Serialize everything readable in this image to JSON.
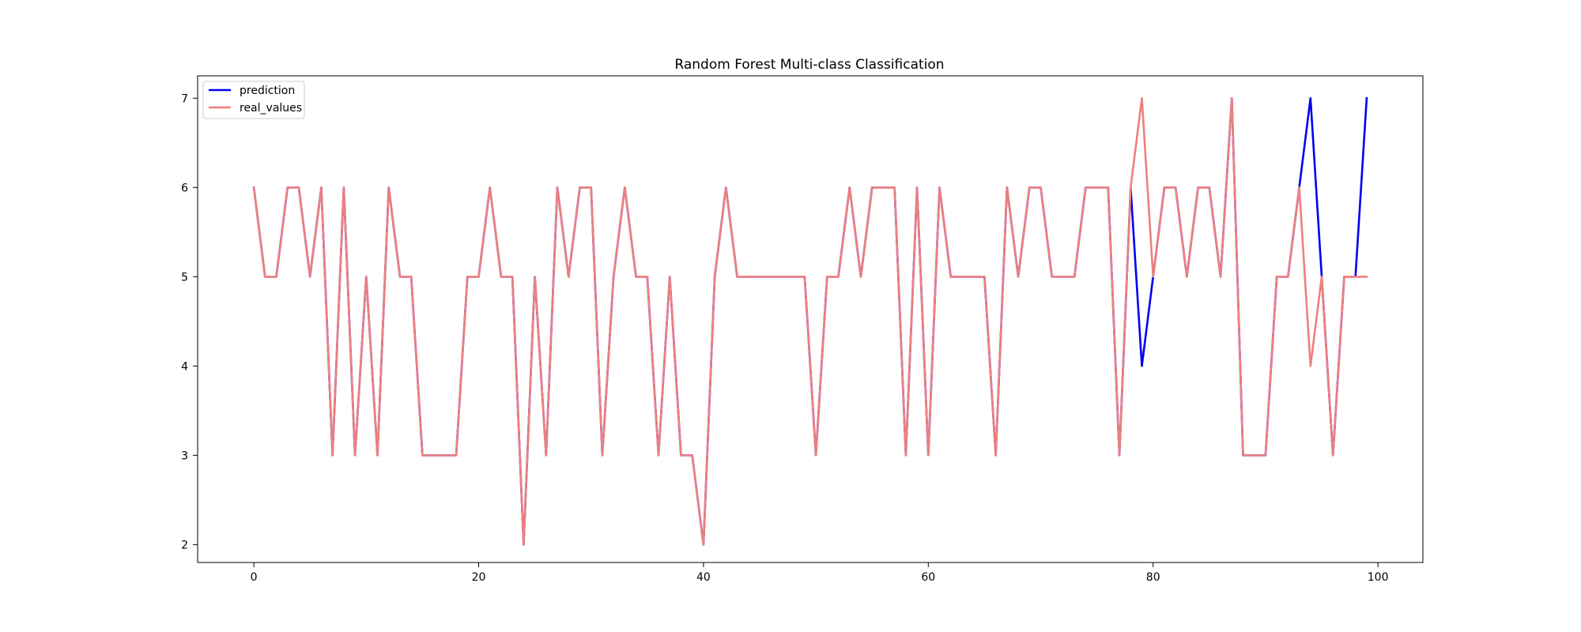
{
  "chart_data": {
    "type": "line",
    "title": "Random Forest Multi-class Classification",
    "xlabel": "",
    "ylabel": "",
    "xlim": [
      -5,
      104
    ],
    "ylim": [
      1.8,
      7.25
    ],
    "x_ticks": [
      0,
      20,
      40,
      60,
      80,
      100
    ],
    "y_ticks": [
      2,
      3,
      4,
      5,
      6,
      7
    ],
    "grid": false,
    "legend_position": "upper-left",
    "x": [
      0,
      1,
      2,
      3,
      4,
      5,
      6,
      7,
      8,
      9,
      10,
      11,
      12,
      13,
      14,
      15,
      16,
      17,
      18,
      19,
      20,
      21,
      22,
      23,
      24,
      25,
      26,
      27,
      28,
      29,
      30,
      31,
      32,
      33,
      34,
      35,
      36,
      37,
      38,
      39,
      40,
      41,
      42,
      43,
      44,
      45,
      46,
      47,
      48,
      49,
      50,
      51,
      52,
      53,
      54,
      55,
      56,
      57,
      58,
      59,
      60,
      61,
      62,
      63,
      64,
      65,
      66,
      67,
      68,
      69,
      70,
      71,
      72,
      73,
      74,
      75,
      76,
      77,
      78,
      79,
      80,
      81,
      82,
      83,
      84,
      85,
      86,
      87,
      88,
      89,
      90,
      91,
      92,
      93,
      94,
      95,
      96,
      97,
      98,
      99
    ],
    "series": [
      {
        "name": "prediction",
        "color": "#0000ee",
        "values": [
          6,
          5,
          5,
          6,
          6,
          5,
          6,
          3,
          6,
          3,
          5,
          3,
          6,
          5,
          5,
          3,
          3,
          3,
          3,
          5,
          5,
          6,
          5,
          5,
          2,
          5,
          3,
          6,
          5,
          6,
          6,
          3,
          5,
          6,
          5,
          5,
          3,
          5,
          3,
          3,
          2,
          5,
          6,
          5,
          5,
          5,
          5,
          5,
          5,
          5,
          3,
          5,
          5,
          6,
          5,
          6,
          6,
          6,
          3,
          6,
          3,
          6,
          5,
          5,
          5,
          5,
          3,
          6,
          5,
          6,
          6,
          5,
          5,
          5,
          6,
          6,
          6,
          3,
          6,
          4,
          5,
          6,
          6,
          5,
          6,
          6,
          5,
          7,
          3,
          3,
          3,
          5,
          5,
          6,
          7,
          5,
          3,
          5,
          5,
          7
        ]
      },
      {
        "name": "real_values",
        "color": "#ee7f7f",
        "values": [
          6,
          5,
          5,
          6,
          6,
          5,
          6,
          3,
          6,
          3,
          5,
          3,
          6,
          5,
          5,
          3,
          3,
          3,
          3,
          5,
          5,
          6,
          5,
          5,
          2,
          5,
          3,
          6,
          5,
          6,
          6,
          3,
          5,
          6,
          5,
          5,
          3,
          5,
          3,
          3,
          2,
          5,
          6,
          5,
          5,
          5,
          5,
          5,
          5,
          5,
          3,
          5,
          5,
          6,
          5,
          6,
          6,
          6,
          3,
          6,
          3,
          6,
          5,
          5,
          5,
          5,
          3,
          6,
          5,
          6,
          6,
          5,
          5,
          5,
          6,
          6,
          6,
          3,
          6,
          7,
          5,
          6,
          6,
          5,
          6,
          6,
          5,
          7,
          3,
          3,
          3,
          5,
          5,
          6,
          4,
          5,
          3,
          5,
          5,
          5
        ]
      }
    ]
  }
}
